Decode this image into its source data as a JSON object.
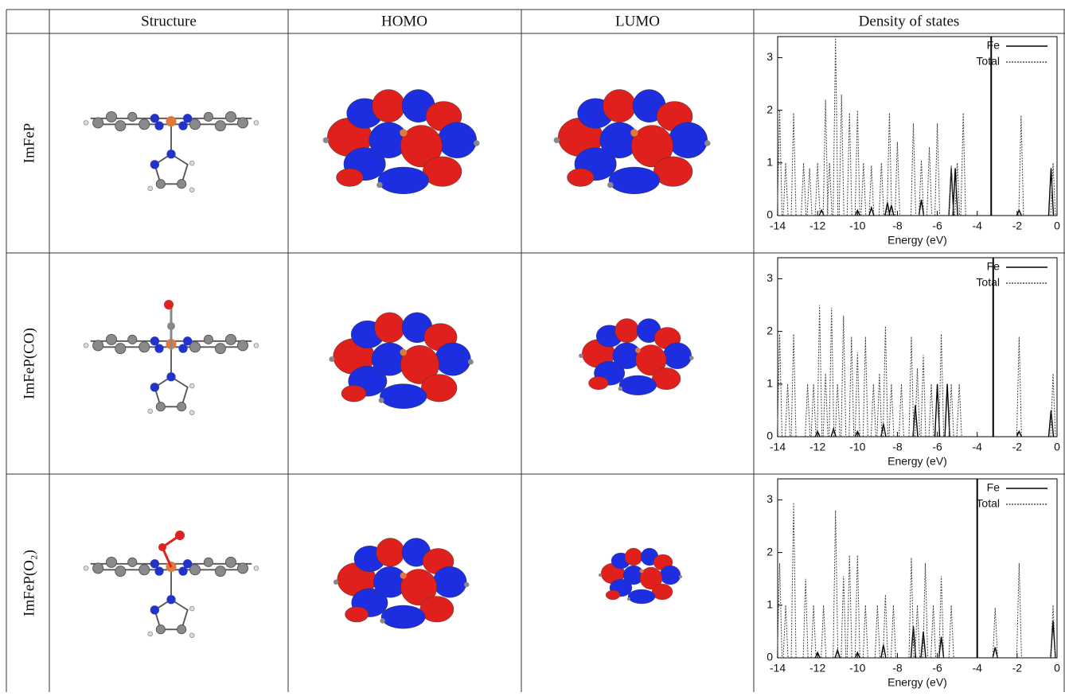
{
  "table": {
    "columns": [
      "Structure",
      "HOMO",
      "LUMO",
      "Density of states"
    ],
    "row_labels": [
      "ImFeP",
      "ImFeP(CO)",
      "ImFeP(O₂)"
    ]
  },
  "chart_data": [
    {
      "type": "spike",
      "x_label": "Energy (eV)",
      "xlim": [
        -14,
        0
      ],
      "xticks": [
        -14,
        -12,
        -10,
        -8,
        -6,
        -4,
        -2,
        0
      ],
      "ylim": [
        0,
        3.4
      ],
      "yticks": [
        0,
        1,
        2,
        3
      ],
      "vline": -3.3,
      "legend": "upper right",
      "series": [
        {
          "name": "Fe",
          "color": "#000000",
          "style": "solid",
          "x": [
            -11.8,
            -10.0,
            -9.3,
            -8.5,
            -8.3,
            -6.8,
            -5.3,
            -5.1,
            -1.9,
            -0.3
          ],
          "values": [
            0.1,
            0.1,
            0.15,
            0.25,
            0.2,
            0.3,
            0.9,
            0.9,
            0.1,
            0.9
          ]
        },
        {
          "name": "Total",
          "color": "#444444",
          "style": "dotted",
          "x": [
            -13.9,
            -13.6,
            -13.2,
            -12.7,
            -12.4,
            -12.0,
            -11.6,
            -11.4,
            -11.1,
            -10.8,
            -10.4,
            -10.0,
            -9.7,
            -9.3,
            -8.8,
            -8.4,
            -8.0,
            -7.2,
            -6.8,
            -6.4,
            -6.0,
            -5.3,
            -5.0,
            -4.7,
            -1.8,
            -0.2
          ],
          "values": [
            2.0,
            1.0,
            1.95,
            1.0,
            0.9,
            1.0,
            2.2,
            1.0,
            3.4,
            2.3,
            1.95,
            2.0,
            1.0,
            0.95,
            1.0,
            1.95,
            1.4,
            1.75,
            1.05,
            1.3,
            1.75,
            0.95,
            1.0,
            1.95,
            1.9,
            1.0
          ]
        }
      ]
    },
    {
      "type": "spike",
      "x_label": "Energy (eV)",
      "xlim": [
        -14,
        0
      ],
      "xticks": [
        -14,
        -12,
        -10,
        -8,
        -6,
        -4,
        -2,
        0
      ],
      "ylim": [
        0,
        3.4
      ],
      "yticks": [
        0,
        1,
        2,
        3
      ],
      "vline": -3.2,
      "legend": "upper right",
      "series": [
        {
          "name": "Fe",
          "color": "#000000",
          "style": "solid",
          "x": [
            -12.0,
            -11.2,
            -10.0,
            -8.7,
            -7.1,
            -6.0,
            -5.5,
            -1.9,
            -0.3
          ],
          "values": [
            0.1,
            0.15,
            0.1,
            0.25,
            0.6,
            1.0,
            1.0,
            0.1,
            0.5
          ]
        },
        {
          "name": "Total",
          "color": "#444444",
          "style": "dotted",
          "x": [
            -13.9,
            -13.5,
            -13.2,
            -12.5,
            -12.2,
            -11.9,
            -11.6,
            -11.3,
            -11.0,
            -10.7,
            -10.3,
            -10.0,
            -9.6,
            -9.2,
            -8.9,
            -8.6,
            -8.3,
            -7.8,
            -7.3,
            -7.0,
            -6.7,
            -6.3,
            -5.8,
            -5.3,
            -4.9,
            -1.9,
            -0.2
          ],
          "values": [
            1.95,
            1.0,
            1.95,
            1.0,
            1.0,
            2.5,
            1.2,
            2.45,
            1.0,
            2.3,
            1.9,
            1.6,
            1.9,
            1.0,
            1.2,
            2.1,
            1.0,
            1.0,
            1.9,
            1.3,
            1.55,
            1.0,
            1.95,
            1.0,
            1.0,
            1.9,
            1.2
          ]
        }
      ]
    },
    {
      "type": "spike",
      "x_label": "Energy (eV)",
      "xlim": [
        -14,
        0
      ],
      "xticks": [
        -14,
        -12,
        -10,
        -8,
        -6,
        -4,
        -2,
        0
      ],
      "ylim": [
        0,
        3.4
      ],
      "yticks": [
        0,
        1,
        2,
        3
      ],
      "vline": -4,
      "legend": "upper right",
      "series": [
        {
          "name": "Fe",
          "color": "#000000",
          "style": "solid",
          "x": [
            -12.0,
            -11.0,
            -10.0,
            -8.7,
            -7.2,
            -6.7,
            -5.8,
            -3.1,
            -0.2
          ],
          "values": [
            0.1,
            0.15,
            0.1,
            0.25,
            0.6,
            0.5,
            0.4,
            0.2,
            0.7
          ]
        },
        {
          "name": "Total",
          "color": "#444444",
          "style": "dotted",
          "x": [
            -13.9,
            -13.6,
            -13.2,
            -12.6,
            -12.2,
            -11.7,
            -11.1,
            -10.7,
            -10.4,
            -10.0,
            -9.6,
            -9.0,
            -8.6,
            -8.2,
            -7.3,
            -7.0,
            -6.6,
            -6.2,
            -5.8,
            -5.3,
            -3.1,
            -1.9,
            -0.2
          ],
          "values": [
            1.8,
            1.0,
            2.95,
            1.5,
            1.0,
            1.0,
            2.8,
            1.55,
            1.95,
            1.95,
            1.0,
            1.0,
            1.2,
            1.0,
            1.9,
            1.0,
            1.8,
            1.0,
            1.55,
            1.0,
            0.95,
            1.8,
            1.0
          ]
        }
      ]
    }
  ]
}
